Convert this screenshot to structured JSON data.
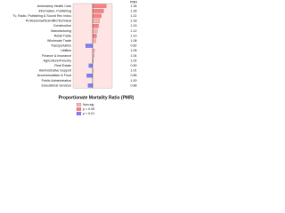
{
  "chart_data": {
    "type": "bar",
    "title": "Proportionate Mortality Ratio (PMR)",
    "categories": [
      "Ambulatory Health Care",
      "Information, Publishing",
      "Tv, Radio, Publishing & Sound Rec Indus",
      "Professional/Scientific/Technical",
      "Construction",
      "Manufacturing",
      "Retail Trade",
      "Wholesale Trade",
      "Transportation",
      "Utilities",
      "Finance & Insurance",
      "Agriculture/Forestry",
      "Real Estate",
      "Administrative Support",
      "Accommodation & Food",
      "Public Administration",
      "Educational Services"
    ],
    "values": [
      1.35,
      1.28,
      1.22,
      1.18,
      1.15,
      1.12,
      1.1,
      1.08,
      0.82,
      1.05,
      1.04,
      1.02,
      0.9,
      1.01,
      0.85,
      1.0,
      0.88
    ],
    "value_labels": [
      "1.35",
      "1.28",
      "1.22",
      "1.18",
      "1.15",
      "1.12",
      "1.10",
      "1.08",
      "0.82",
      "1.05",
      "1.04",
      "1.02",
      "0.90",
      "1.01",
      "0.85",
      "1.00",
      "0.88"
    ],
    "colors": [
      "#ff8080",
      "#ff8080",
      "#ff8080",
      "#ffb0b0",
      "#ff8080",
      "#ffb0b0",
      "#ff8080",
      "#ffb0b0",
      "#8080ff",
      "#ffb0b0",
      "#ffb0b0",
      "#ffb0b0",
      "#8080ff",
      "#ffb0b0",
      "#8080ff",
      "#ffb0b0",
      "#8080ff"
    ],
    "value_header": "PMR",
    "xlim": [
      0.5,
      1.5
    ],
    "legend": [
      {
        "name": "Non-sig",
        "color": "#ffb0b0"
      },
      {
        "name": "p < 0.05",
        "color": "#ff8080"
      },
      {
        "name": "p < 0.01",
        "color": "#8080ff"
      }
    ]
  }
}
